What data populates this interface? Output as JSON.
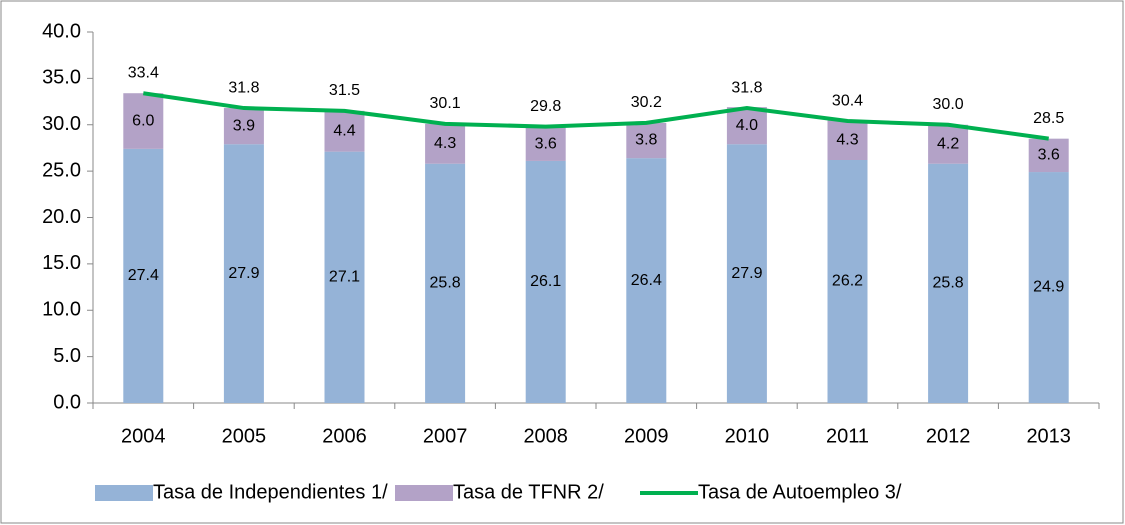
{
  "chart_data": {
    "type": "stacked-bar-line",
    "categories": [
      "2004",
      "2005",
      "2006",
      "2007",
      "2008",
      "2009",
      "2010",
      "2011",
      "2012",
      "2013"
    ],
    "series": [
      {
        "name": "Tasa de Independientes 1/",
        "color": "#95b3d7",
        "kind": "bar",
        "values": [
          27.4,
          27.9,
          27.1,
          25.8,
          26.1,
          26.4,
          27.9,
          26.2,
          25.8,
          24.9
        ],
        "value_labels": [
          "27.4",
          "27.9",
          "27.1",
          "25.8",
          "26.1",
          "26.4",
          "27.9",
          "26.2",
          "25.8",
          "24.9"
        ]
      },
      {
        "name": "Tasa de TFNR 2/",
        "color": "#b3a2c7",
        "kind": "bar",
        "values": [
          6.0,
          3.9,
          4.4,
          4.3,
          3.6,
          3.8,
          4.0,
          4.3,
          4.2,
          3.6
        ],
        "value_labels": [
          "6.0",
          "3.9",
          "4.4",
          "4.3",
          "3.6",
          "3.8",
          "4.0",
          "4.3",
          "4.2",
          "3.6"
        ]
      },
      {
        "name": "Tasa de Autoempleo 3/",
        "color": "#00b050",
        "kind": "line",
        "values": [
          33.4,
          31.8,
          31.5,
          30.1,
          29.8,
          30.2,
          31.8,
          30.4,
          30.0,
          28.5
        ],
        "value_labels": [
          "33.4",
          "31.8",
          "31.5",
          "30.1",
          "29.8",
          "30.2",
          "31.8",
          "30.4",
          "30.0",
          "28.5"
        ]
      }
    ],
    "ylim": [
      0,
      40
    ],
    "yticks": [
      {
        "value": 0,
        "label": "0.0"
      },
      {
        "value": 5,
        "label": "5.0"
      },
      {
        "value": 10,
        "label": "10.0"
      },
      {
        "value": 15,
        "label": "15.0"
      },
      {
        "value": 20,
        "label": "20.0"
      },
      {
        "value": 25,
        "label": "25.0"
      },
      {
        "value": 30,
        "label": "30.0"
      },
      {
        "value": 35,
        "label": "35.0"
      },
      {
        "value": 40,
        "label": "40.0"
      }
    ],
    "grid": false,
    "legend": "bottom"
  }
}
